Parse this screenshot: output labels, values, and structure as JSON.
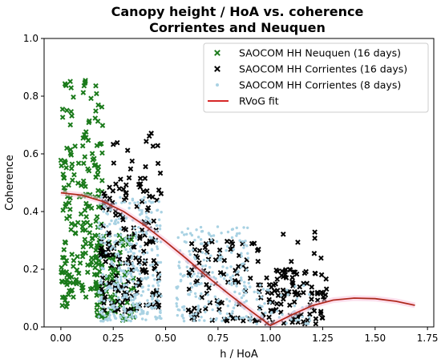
{
  "chart_data": {
    "type": "scatter",
    "title": "Canopy height / HoA vs. coherence",
    "subtitle": "Corrientes and Neuquen",
    "xlabel": "h / HoA",
    "ylabel": "Coherence",
    "xlim": [
      -0.08,
      1.78
    ],
    "ylim": [
      0.0,
      1.0
    ],
    "xticks": [
      "0.00",
      "0.25",
      "0.50",
      "0.75",
      "1.00",
      "1.25",
      "1.50",
      "1.75"
    ],
    "xtick_values": [
      0.0,
      0.25,
      0.5,
      0.75,
      1.0,
      1.25,
      1.5,
      1.75
    ],
    "yticks": [
      "0.0",
      "0.2",
      "0.4",
      "0.6",
      "0.8",
      "1.0"
    ],
    "ytick_values": [
      0.0,
      0.2,
      0.4,
      0.6,
      0.8,
      1.0
    ],
    "legend_position": "top-right",
    "grid": false,
    "series": [
      {
        "name": "SAOCOM HH Neuquen (16 days)",
        "marker": "x",
        "color": "#1a7a1a",
        "clusters": [
          {
            "x_min": 0.0,
            "x_max": 0.06,
            "y_min": 0.07,
            "y_max": 0.86,
            "n": 80
          },
          {
            "x_min": 0.06,
            "x_max": 0.11,
            "y_min": 0.08,
            "y_max": 0.66,
            "n": 25
          },
          {
            "x_min": 0.1,
            "x_max": 0.2,
            "y_min": 0.1,
            "y_max": 0.87,
            "n": 110
          },
          {
            "x_min": 0.17,
            "x_max": 0.35,
            "y_min": 0.02,
            "y_max": 0.32,
            "n": 90
          }
        ]
      },
      {
        "name": "SAOCOM HH Corrientes (16 days)",
        "marker": "x",
        "color": "#000000",
        "clusters": [
          {
            "x_min": 0.19,
            "x_max": 0.47,
            "y_min": 0.05,
            "y_max": 0.5,
            "n": 160
          },
          {
            "x_min": 0.25,
            "x_max": 0.49,
            "y_min": 0.45,
            "y_max": 0.68,
            "n": 22
          },
          {
            "x_min": 0.6,
            "x_max": 0.95,
            "y_min": 0.02,
            "y_max": 0.3,
            "n": 90
          },
          {
            "x_min": 0.95,
            "x_max": 1.27,
            "y_min": 0.01,
            "y_max": 0.2,
            "n": 100
          },
          {
            "x_min": 1.05,
            "x_max": 1.25,
            "y_min": 0.18,
            "y_max": 0.33,
            "n": 14
          }
        ]
      },
      {
        "name": "SAOCOM HH Corrientes (8 days)",
        "marker": "dot",
        "color": "#a9d2e3",
        "clusters": [
          {
            "x_min": 0.18,
            "x_max": 0.48,
            "y_min": 0.02,
            "y_max": 0.45,
            "n": 360
          },
          {
            "x_min": 0.55,
            "x_max": 0.9,
            "y_min": 0.02,
            "y_max": 0.35,
            "n": 220
          },
          {
            "x_min": 0.9,
            "x_max": 1.2,
            "y_min": 0.01,
            "y_max": 0.15,
            "n": 60
          }
        ]
      },
      {
        "name": "RVoG fit",
        "marker": "line",
        "color": "#d62728",
        "curve": "sinc",
        "x": [
          0.0,
          0.1,
          0.2,
          0.3,
          0.4,
          0.5,
          0.6,
          0.7,
          0.8,
          0.9,
          1.0,
          1.1,
          1.2,
          1.3,
          1.4,
          1.5,
          1.6,
          1.69
        ],
        "y": [
          0.465,
          0.457,
          0.435,
          0.4,
          0.352,
          0.296,
          0.236,
          0.174,
          0.115,
          0.059,
          0.005,
          0.041,
          0.074,
          0.093,
          0.1,
          0.098,
          0.089,
          0.075
        ]
      }
    ]
  }
}
